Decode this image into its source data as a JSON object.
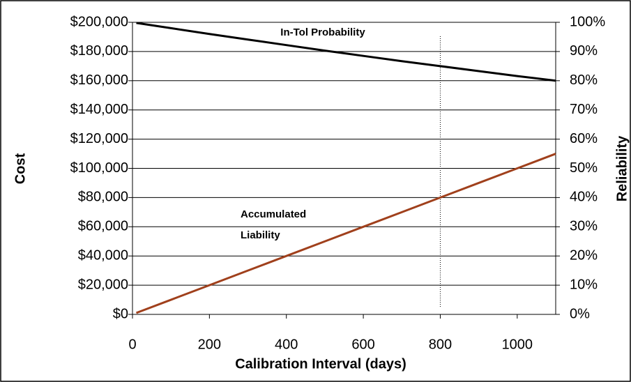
{
  "chart_data": {
    "type": "line",
    "x_label": "Calibration Interval (days)",
    "y_label": "Cost",
    "y2_label": "Reliability",
    "x": [
      10,
      100,
      200,
      300,
      400,
      500,
      600,
      700,
      800,
      900,
      1000,
      1100
    ],
    "series": [
      {
        "name": "In-Tol Probability",
        "color": "#000000",
        "axis": "y2",
        "values": [
          99.8,
          98.0,
          96.0,
          94.1,
          92.2,
          90.3,
          88.5,
          86.7,
          85.0,
          83.3,
          81.6,
          80.0
        ]
      },
      {
        "name": "Accumulated Liability",
        "color": "#a0401c",
        "values": [
          1000,
          10000,
          20000,
          30000,
          40000,
          50000,
          60000,
          70000,
          80000,
          90000,
          100000,
          110000
        ]
      }
    ],
    "marker_x": 800,
    "xlim": [
      0,
      1100
    ],
    "xticks": [
      0,
      200,
      400,
      600,
      800,
      1000
    ],
    "ylim": [
      0,
      200000
    ],
    "yticks": [
      {
        "value": 0,
        "label": "$0"
      },
      {
        "value": 20000,
        "label": "$20,000"
      },
      {
        "value": 40000,
        "label": "$40,000"
      },
      {
        "value": 60000,
        "label": "$60,000"
      },
      {
        "value": 80000,
        "label": "$80,000"
      },
      {
        "value": 100000,
        "label": "$100,000"
      },
      {
        "value": 120000,
        "label": "$120,000"
      },
      {
        "value": 140000,
        "label": "$140,000"
      },
      {
        "value": 160000,
        "label": "$160,000"
      },
      {
        "value": 180000,
        "label": "$180,000"
      },
      {
        "value": 200000,
        "label": "$200,000"
      }
    ],
    "y2lim": [
      0,
      100
    ],
    "y2ticks": [
      {
        "value": 0,
        "label": "0%"
      },
      {
        "value": 10,
        "label": "10%"
      },
      {
        "value": 20,
        "label": "20%"
      },
      {
        "value": 30,
        "label": "30%"
      },
      {
        "value": 40,
        "label": "40%"
      },
      {
        "value": 50,
        "label": "50%"
      },
      {
        "value": 60,
        "label": "60%"
      },
      {
        "value": 70,
        "label": "70%"
      },
      {
        "value": 80,
        "label": "80%"
      },
      {
        "value": 90,
        "label": "90%"
      },
      {
        "value": 100,
        "label": "100%"
      }
    ],
    "grid": true
  }
}
